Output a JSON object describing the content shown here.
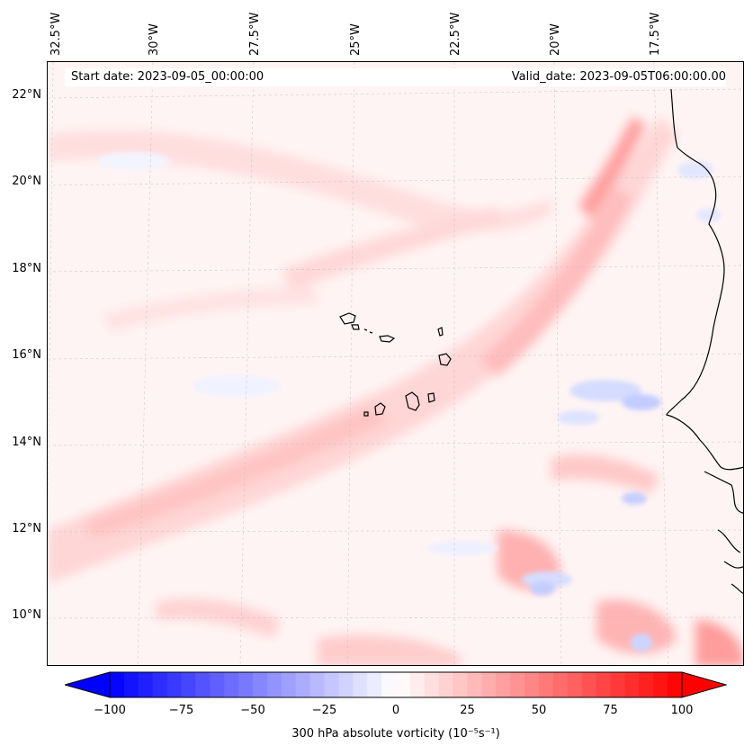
{
  "map": {
    "start_date": "Start date: 2023-09-05_00:00:00",
    "valid_date": "Valid_date: 2023-09-05T06:00:00.00",
    "lon_ticks": [
      "32.5°W",
      "30°W",
      "27.5°W",
      "25°W",
      "22.5°W",
      "20°W",
      "17.5°W"
    ],
    "lat_ticks": [
      "22°N",
      "20°N",
      "18°N",
      "16°N",
      "14°N",
      "12°N",
      "10°N"
    ],
    "colors": {
      "negative": "#0000ff",
      "zero": "#ffffff",
      "positive": "#ff0000",
      "coast": "#000000"
    }
  },
  "colorbar": {
    "label": "300 hPa absolute vorticity (10⁻⁵s⁻¹)",
    "ticks": [
      "−100",
      "−75",
      "−50",
      "−25",
      "0",
      "25",
      "50",
      "75",
      "100"
    ],
    "min": -100,
    "max": 100
  }
}
